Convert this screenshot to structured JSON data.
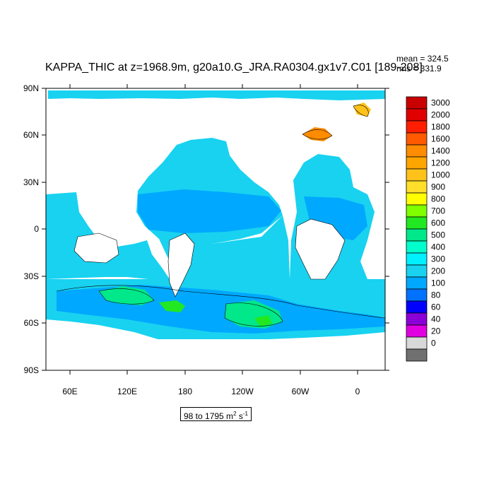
{
  "title": "KAPPA_THIC at z=1968.9m, g20a10.G_JRA.RA0304.gx1v7.C01 [189-208]",
  "stats": {
    "mean": "mean = 324.5",
    "rms": "rms = 331.9"
  },
  "range": {
    "text": "98 to 1795 m",
    "unit_pow1": "2",
    "unit_mid": " s",
    "unit_pow2": "-1"
  },
  "axes": {
    "lat_labels": [
      "90N",
      "60N",
      "30N",
      "0",
      "30S",
      "60S",
      "90S"
    ],
    "lon_labels": [
      "60E",
      "120E",
      "180",
      "120W",
      "60W",
      "0"
    ]
  },
  "colorbar": {
    "levels": [
      "3000",
      "2000",
      "1800",
      "1600",
      "1400",
      "1200",
      "1000",
      "900",
      "800",
      "700",
      "600",
      "500",
      "400",
      "300",
      "200",
      "100",
      "80",
      "60",
      "40",
      "20",
      "0"
    ],
    "colors": [
      "#c80000",
      "#e00000",
      "#ff1e00",
      "#ff5a00",
      "#ff8c00",
      "#ffa500",
      "#ffc21a",
      "#ffdf2a",
      "#ffff00",
      "#7fff00",
      "#22e822",
      "#00e88a",
      "#00ffcc",
      "#00f0ff",
      "#18d2f0",
      "#00a8ff",
      "#0072ff",
      "#0000ff",
      "#8c00d8",
      "#e000e0",
      "#d8d8d8",
      "#707070"
    ]
  },
  "fill_colors": {
    "ocean": "#18d2f0",
    "band": "#00a8ff",
    "green": "#22e822",
    "teal": "#00e88a",
    "orange": "#ff8c00",
    "land": "#ffffff"
  }
}
